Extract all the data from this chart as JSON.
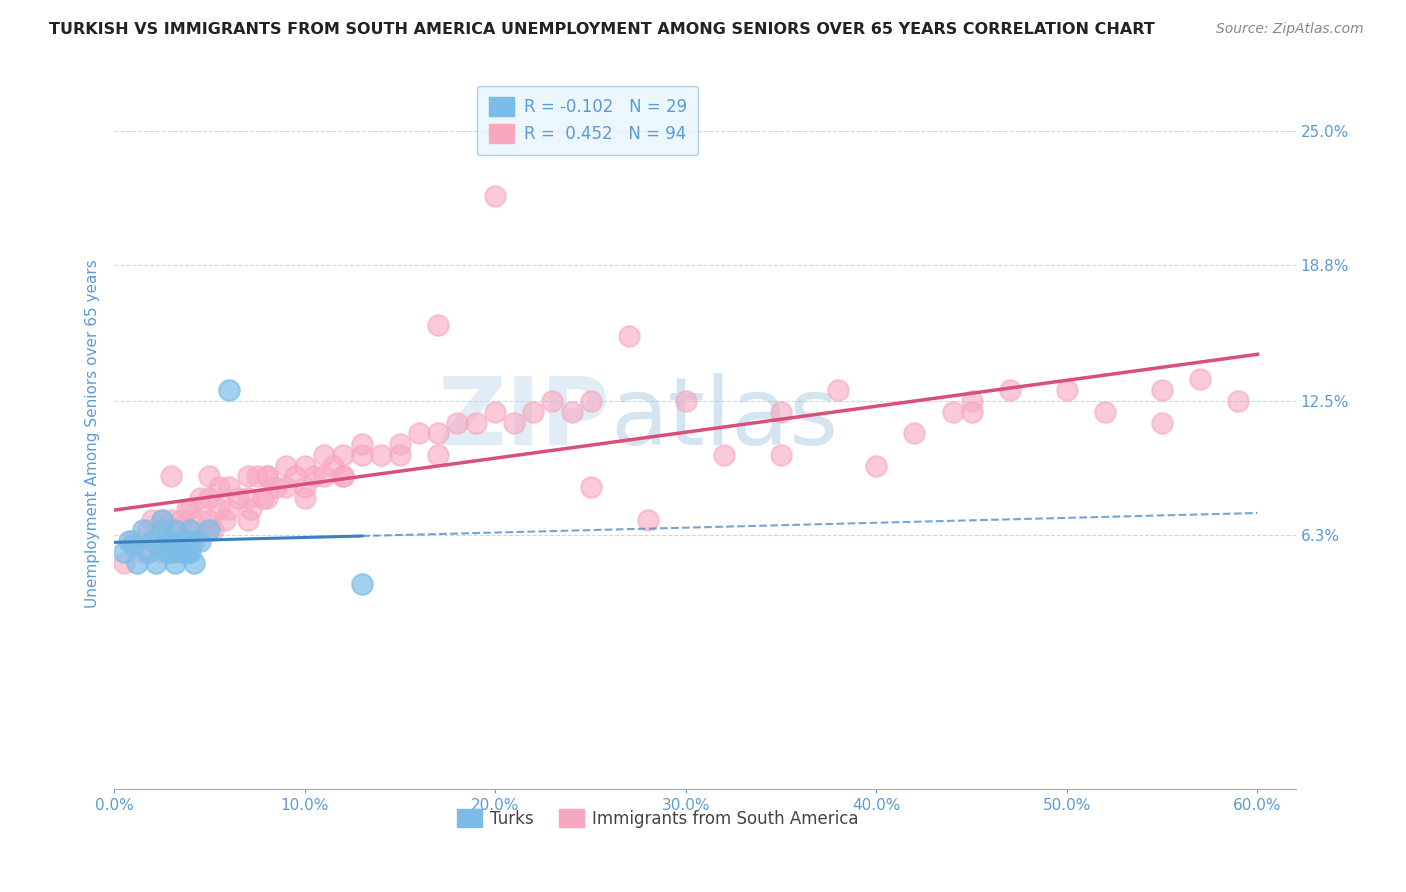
{
  "title": "TURKISH VS IMMIGRANTS FROM SOUTH AMERICA UNEMPLOYMENT AMONG SENIORS OVER 65 YEARS CORRELATION CHART",
  "source": "Source: ZipAtlas.com",
  "ylabel": "Unemployment Among Seniors over 65 years",
  "xlim": [
    0.0,
    0.62
  ],
  "ylim": [
    -0.055,
    0.275
  ],
  "yticks": [
    0.063,
    0.125,
    0.188,
    0.25
  ],
  "ytick_labels": [
    "6.3%",
    "12.5%",
    "18.8%",
    "25.0%"
  ],
  "xticks": [
    0.0,
    0.1,
    0.2,
    0.3,
    0.4,
    0.5,
    0.6
  ],
  "xtick_labels": [
    "0.0%",
    "10.0%",
    "20.0%",
    "30.0%",
    "40.0%",
    "50.0%",
    "60.0%"
  ],
  "turks_color": "#7bbde8",
  "immigrants_color": "#f7a8bf",
  "turks_R": -0.102,
  "turks_N": 29,
  "immigrants_R": 0.452,
  "immigrants_N": 94,
  "turks_line_color": "#3a7fc1",
  "immigrants_line_color": "#d94f7a",
  "watermark_zip": "ZIP",
  "watermark_atlas": "atlas",
  "legend_box_color": "#e8f4fd",
  "axis_label_color": "#5b9bd5",
  "tick_label_color": "#5b9bd5",
  "turks_x": [
    0.005,
    0.008,
    0.01,
    0.012,
    0.015,
    0.018,
    0.02,
    0.022,
    0.025,
    0.025,
    0.027,
    0.028,
    0.03,
    0.03,
    0.032,
    0.032,
    0.033,
    0.035,
    0.035,
    0.038,
    0.038,
    0.04,
    0.04,
    0.04,
    0.042,
    0.045,
    0.05,
    0.06,
    0.13
  ],
  "turks_y": [
    0.055,
    0.06,
    0.058,
    0.05,
    0.065,
    0.055,
    0.06,
    0.05,
    0.065,
    0.07,
    0.06,
    0.055,
    0.055,
    0.06,
    0.05,
    0.065,
    0.058,
    0.06,
    0.055,
    0.055,
    0.06,
    0.055,
    0.06,
    0.065,
    0.05,
    0.06,
    0.065,
    0.13,
    0.04
  ],
  "immigrants_x": [
    0.005,
    0.01,
    0.015,
    0.018,
    0.02,
    0.022,
    0.025,
    0.025,
    0.028,
    0.03,
    0.03,
    0.032,
    0.033,
    0.035,
    0.035,
    0.038,
    0.04,
    0.04,
    0.042,
    0.045,
    0.045,
    0.048,
    0.05,
    0.05,
    0.052,
    0.055,
    0.055,
    0.058,
    0.06,
    0.06,
    0.065,
    0.07,
    0.07,
    0.072,
    0.075,
    0.078,
    0.08,
    0.08,
    0.085,
    0.09,
    0.09,
    0.095,
    0.1,
    0.1,
    0.105,
    0.11,
    0.11,
    0.115,
    0.12,
    0.12,
    0.13,
    0.13,
    0.14,
    0.15,
    0.16,
    0.17,
    0.18,
    0.19,
    0.2,
    0.21,
    0.22,
    0.23,
    0.24,
    0.25,
    0.27,
    0.28,
    0.3,
    0.32,
    0.35,
    0.38,
    0.4,
    0.42,
    0.44,
    0.45,
    0.47,
    0.5,
    0.52,
    0.55,
    0.57,
    0.59,
    0.03,
    0.05,
    0.07,
    0.08,
    0.1,
    0.12,
    0.15,
    0.17,
    0.25,
    0.35,
    0.45,
    0.55,
    0.17,
    0.2
  ],
  "immigrants_y": [
    0.05,
    0.06,
    0.055,
    0.065,
    0.07,
    0.06,
    0.055,
    0.07,
    0.065,
    0.055,
    0.07,
    0.065,
    0.06,
    0.07,
    0.065,
    0.075,
    0.065,
    0.075,
    0.06,
    0.07,
    0.08,
    0.065,
    0.07,
    0.08,
    0.065,
    0.075,
    0.085,
    0.07,
    0.075,
    0.085,
    0.08,
    0.07,
    0.08,
    0.075,
    0.09,
    0.08,
    0.08,
    0.09,
    0.085,
    0.085,
    0.095,
    0.09,
    0.085,
    0.095,
    0.09,
    0.09,
    0.1,
    0.095,
    0.09,
    0.1,
    0.1,
    0.105,
    0.1,
    0.105,
    0.11,
    0.11,
    0.115,
    0.115,
    0.12,
    0.115,
    0.12,
    0.125,
    0.12,
    0.125,
    0.155,
    0.07,
    0.125,
    0.1,
    0.12,
    0.13,
    0.095,
    0.11,
    0.12,
    0.125,
    0.13,
    0.13,
    0.12,
    0.13,
    0.135,
    0.125,
    0.09,
    0.09,
    0.09,
    0.09,
    0.08,
    0.09,
    0.1,
    0.1,
    0.085,
    0.1,
    0.12,
    0.115,
    0.16,
    0.22
  ]
}
